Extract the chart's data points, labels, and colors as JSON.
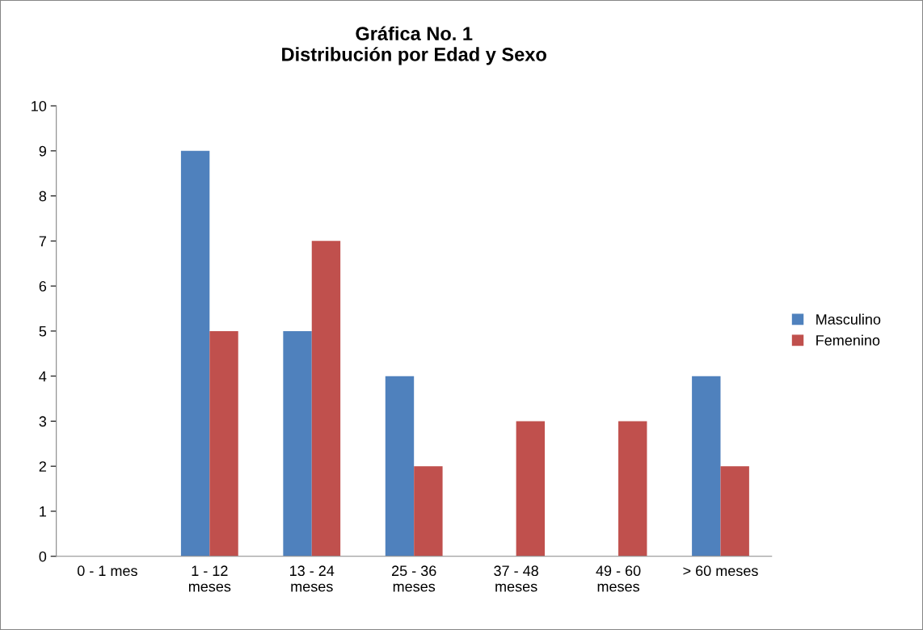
{
  "chart_data": {
    "type": "bar",
    "title": "Gráfica No. 1\nDistribución por Edad y Sexo",
    "categories": [
      "0 - 1 mes",
      "1 - 12\nmeses",
      "13 - 24\nmeses",
      "25 - 36\nmeses",
      "37 - 48\nmeses",
      "49 - 60\nmeses",
      "> 60 meses"
    ],
    "series": [
      {
        "name": "Masculino",
        "color": "#4f81bd",
        "values": [
          0,
          9,
          5,
          4,
          0,
          0,
          4
        ]
      },
      {
        "name": "Femenino",
        "color": "#c0504d",
        "values": [
          0,
          5,
          7,
          2,
          3,
          3,
          2
        ]
      }
    ],
    "ylim": [
      0,
      10
    ],
    "yticks": [
      0,
      1,
      2,
      3,
      4,
      5,
      6,
      7,
      8,
      9,
      10
    ],
    "grid": false,
    "legend": "right"
  }
}
